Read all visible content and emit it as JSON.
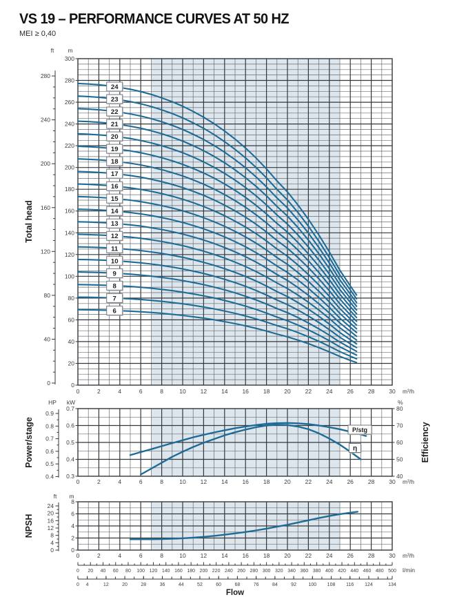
{
  "header": {
    "title": "VS 19 – PERFORMANCE CURVES AT 50 HZ",
    "subtitle": "MEI ≥ 0,40"
  },
  "colors": {
    "curve": "#1e6b97",
    "band": "#dce6ec",
    "grid_minor": "#686d72",
    "grid_major": "#33373b",
    "text_dark": "#1b1d1f",
    "text_tick": "#3a3e42"
  },
  "chart_data": [
    {
      "type": "line",
      "name": "total-head",
      "ylabel": "Total head",
      "unit_left_outer": "ft",
      "unit_left_inner": "m",
      "unit_x": "m³/h",
      "x_axis": {
        "min": 0,
        "max": 30,
        "label_step": 2,
        "minor_step": 1
      },
      "y_axis_m": {
        "min": 0,
        "max": 300,
        "label_step": 20,
        "minor_step": 5
      },
      "y_axis_ft": {
        "min": 0,
        "max": 280,
        "label_step": 40,
        "tick_step": 10
      },
      "band_x": [
        7,
        25
      ],
      "stages": [
        6,
        7,
        8,
        9,
        10,
        11,
        12,
        13,
        14,
        15,
        16,
        17,
        18,
        19,
        20,
        21,
        22,
        23,
        24
      ],
      "stage_label_flow": 3.5,
      "flow": [
        0,
        1,
        2,
        3,
        4,
        5,
        6,
        7,
        8,
        9,
        10,
        11,
        12,
        13,
        14,
        15,
        16,
        17,
        18,
        19,
        20,
        21,
        22,
        23,
        24,
        25,
        26,
        26.6
      ],
      "head_per_stage": [
        11.55,
        11.53,
        11.5,
        11.46,
        11.4,
        11.33,
        11.24,
        11.13,
        11.0,
        10.85,
        10.68,
        10.48,
        10.26,
        10.01,
        9.73,
        9.42,
        9.08,
        8.7,
        8.28,
        7.82,
        7.4,
        6.9,
        6.35,
        5.75,
        5.1,
        4.4,
        3.8,
        3.45
      ]
    },
    {
      "type": "line",
      "name": "power-efficiency",
      "ylabel_left": "Power/stage",
      "ylabel_right": "Efficiency",
      "unit_left_outer": "HP",
      "unit_left_inner": "kW",
      "unit_right": "%",
      "unit_x": "m³/h",
      "x_axis": {
        "min": 0,
        "max": 30,
        "label_step": 2,
        "minor_step": 1
      },
      "y_axis_kw": {
        "min": 0.3,
        "max": 0.7,
        "label_step": 0.1,
        "minor_step": 0.05
      },
      "y_axis_hp": {
        "min": 0.4,
        "max": 0.9,
        "label_step": 0.1,
        "tick_step": 0.05
      },
      "y_axis_pct": {
        "min": 40,
        "max": 80,
        "label_step": 10
      },
      "band_x": [
        7,
        25
      ],
      "series": [
        {
          "name": "P/stg",
          "axis": "kw",
          "x": [
            5,
            6,
            7,
            8,
            9,
            10,
            11,
            12,
            13,
            14,
            15,
            16,
            17,
            18,
            19,
            20,
            21,
            22,
            23,
            24,
            25,
            26,
            27,
            27.5
          ],
          "y": [
            0.425,
            0.443,
            0.46,
            0.478,
            0.496,
            0.513,
            0.53,
            0.545,
            0.559,
            0.572,
            0.584,
            0.594,
            0.603,
            0.61,
            0.614,
            0.615,
            0.613,
            0.608,
            0.6,
            0.59,
            0.578,
            0.563,
            0.547,
            0.538
          ]
        },
        {
          "name": "η",
          "axis": "pct",
          "x": [
            6,
            7,
            8,
            9,
            10,
            11,
            12,
            13,
            14,
            15,
            16,
            17,
            18,
            19,
            20,
            21,
            22,
            23,
            24,
            25,
            26,
            27
          ],
          "y": [
            41,
            44.5,
            48,
            51.5,
            54.5,
            57.3,
            59.8,
            62,
            64.2,
            66,
            67.6,
            69,
            70,
            70.5,
            70.3,
            69.4,
            67.8,
            65.4,
            62.3,
            58.7,
            54.5,
            50
          ]
        }
      ]
    },
    {
      "type": "line",
      "name": "npsh",
      "ylabel": "NPSH",
      "unit_left_outer": "ft",
      "unit_left_inner": "m",
      "unit_x": "m³/h",
      "x_axis": {
        "min": 0,
        "max": 30,
        "label_step": 2,
        "minor_step": 1
      },
      "y_axis_m": {
        "min": 0,
        "max": 8,
        "label_step": 2,
        "minor_step": 1
      },
      "y_axis_ft": {
        "min": 0,
        "max": 24,
        "label_step": 4,
        "tick_step": 2
      },
      "band_x": [
        7,
        25
      ],
      "series": [
        {
          "name": "NPSH",
          "axis": "m",
          "x": [
            5,
            6,
            7,
            8,
            9,
            10,
            11,
            12,
            13,
            14,
            15,
            16,
            17,
            18,
            19,
            20,
            21,
            22,
            23,
            24,
            25,
            26,
            26.7
          ],
          "y": [
            1.8,
            1.8,
            1.8,
            1.82,
            1.87,
            1.95,
            2.06,
            2.2,
            2.36,
            2.55,
            2.77,
            3.0,
            3.26,
            3.55,
            3.87,
            4.2,
            4.56,
            4.94,
            5.3,
            5.65,
            5.95,
            6.2,
            6.35
          ]
        }
      ]
    }
  ],
  "bottom_axes": {
    "lmin": {
      "unit": "l/min",
      "min": 0,
      "max": 500,
      "label_step": 20,
      "tick_step": 10
    },
    "gpm": {
      "max": 134,
      "tick_step": 4,
      "labels": [
        0,
        4,
        12,
        20,
        28,
        36,
        44,
        52,
        60,
        68,
        76,
        84,
        92,
        100,
        108,
        116,
        124,
        134
      ]
    },
    "xlabel": "Flow"
  }
}
